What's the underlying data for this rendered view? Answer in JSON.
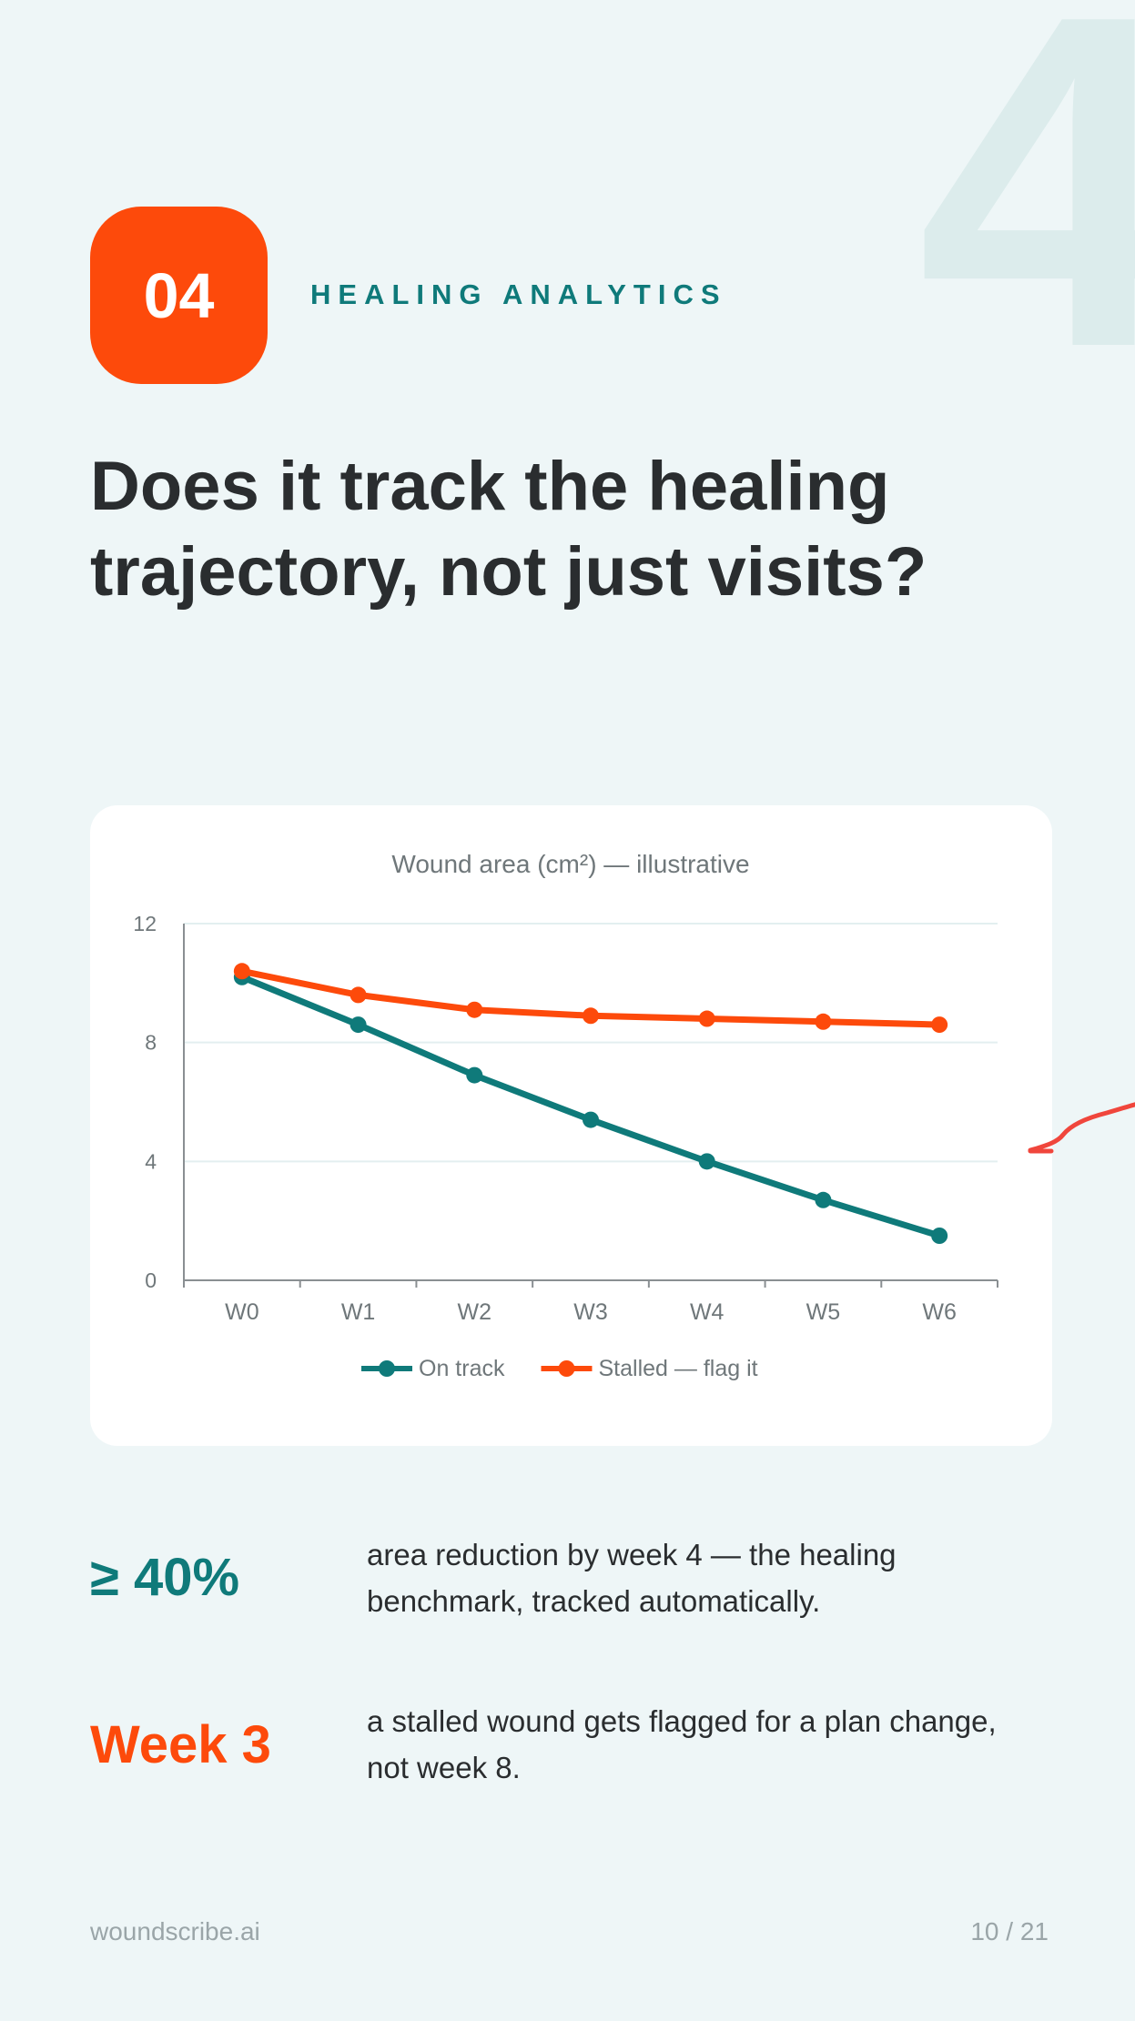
{
  "page": {
    "bg_numeral": "4",
    "badge_number": "04",
    "section_label": "HEALING ANALYTICS",
    "title_line1": "Does it track the healing",
    "title_line2": "trajectory, not just visits?"
  },
  "stats": [
    {
      "value": "≥ 40%",
      "color": "#0f7a7a",
      "text_line1": "area reduction by week 4 — the healing",
      "text_line2": "benchmark, tracked automatically."
    },
    {
      "value": "Week 3",
      "color": "#fd4a0b",
      "text_line1": "a stalled wound gets flagged for a plan change,",
      "text_line2": "not week 8."
    }
  ],
  "footer": {
    "brand": "woundscribe.ai",
    "page": "10 / 21"
  },
  "colors": {
    "accent": "#fd4a0b",
    "teal": "#0f7a7a",
    "background": "#eef6f7"
  },
  "chart_data": {
    "type": "line",
    "title": "Wound area (cm²) — illustrative",
    "xlabel": "",
    "ylabel": "",
    "categories": [
      "W0",
      "W1",
      "W2",
      "W3",
      "W4",
      "W5",
      "W6"
    ],
    "ylim": [
      0,
      12
    ],
    "yticks": [
      "0",
      "4",
      "8",
      "12"
    ],
    "grid": "horizontal",
    "legend_position": "bottom",
    "series": [
      {
        "name": "On track",
        "color": "#0f7a7a",
        "values": [
          10.2,
          8.6,
          6.9,
          5.4,
          4.0,
          2.7,
          1.5
        ]
      },
      {
        "name": "Stalled — flag it",
        "color": "#fd4a0b",
        "values": [
          10.4,
          9.6,
          9.1,
          8.9,
          8.8,
          8.7,
          8.6
        ]
      }
    ]
  }
}
